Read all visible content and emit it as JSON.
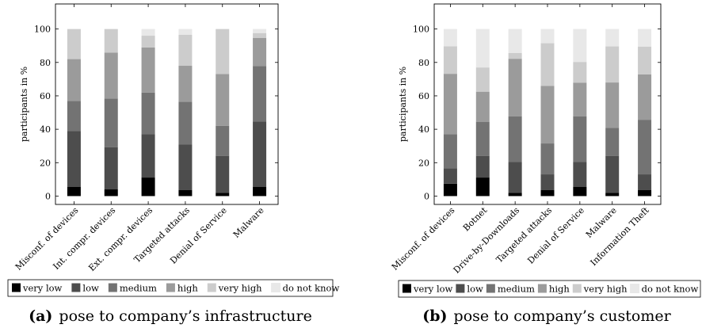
{
  "levels": [
    {
      "name": "very low",
      "color": "#000000"
    },
    {
      "name": "low",
      "color": "#4d4d4d"
    },
    {
      "name": "medium",
      "color": "#737373"
    },
    {
      "name": "high",
      "color": "#9b9b9b"
    },
    {
      "name": "very high",
      "color": "#cccccc"
    },
    {
      "name": "do not know",
      "color": "#e8e8e8"
    }
  ],
  "chart_data": [
    {
      "type": "bar",
      "stacked": true,
      "caption_label": "(a)",
      "caption_text": "pose to company’s infrastructure",
      "ylabel": "participants in %",
      "ylim": [
        -5,
        115
      ],
      "yticks": [
        0,
        20,
        40,
        60,
        80,
        100
      ],
      "categories": [
        "Misconf. of devices",
        "Int. compr. devices",
        "Ext. compr. devices",
        "Targeted attacks",
        "Denial of Service",
        "Malware"
      ],
      "series": [
        {
          "name": "very low",
          "values": [
            5.6,
            4.0,
            11.1,
            3.7,
            1.9,
            5.6
          ]
        },
        {
          "name": "low",
          "values": [
            33.3,
            25.3,
            25.9,
            27.1,
            22.2,
            39.0
          ]
        },
        {
          "name": "medium",
          "values": [
            18.1,
            29.1,
            25.0,
            25.7,
            18.0,
            33.3
          ]
        },
        {
          "name": "high",
          "values": [
            25.0,
            27.5,
            27.0,
            21.5,
            31.0,
            16.7
          ]
        },
        {
          "name": "very high",
          "values": [
            18.0,
            14.1,
            7.0,
            18.5,
            26.9,
            3.0
          ]
        },
        {
          "name": "do not know",
          "values": [
            0.0,
            0.0,
            4.0,
            3.5,
            0.0,
            2.4
          ]
        }
      ],
      "legend_position": "bottom"
    },
    {
      "type": "bar",
      "stacked": true,
      "caption_label": "(b)",
      "caption_text": "pose to company’s customer",
      "ylabel": "participants in %",
      "ylim": [
        -5,
        115
      ],
      "yticks": [
        0,
        20,
        40,
        60,
        80,
        100
      ],
      "categories": [
        "Misconf. of devices",
        "Botnet",
        "Drive-by-Downloads",
        "Targeted attacks",
        "Denial of Service",
        "Malware",
        "Information Theft"
      ],
      "series": [
        {
          "name": "very low",
          "values": [
            7.4,
            11.1,
            1.9,
            3.7,
            5.6,
            1.9,
            3.7
          ]
        },
        {
          "name": "low",
          "values": [
            9.3,
            13.0,
            18.5,
            9.3,
            14.8,
            22.2,
            9.3
          ]
        },
        {
          "name": "medium",
          "values": [
            20.4,
            20.4,
            27.4,
            18.5,
            27.4,
            16.7,
            32.7
          ]
        },
        {
          "name": "high",
          "values": [
            36.1,
            18.0,
            34.4,
            34.5,
            20.0,
            27.2,
            27.1
          ]
        },
        {
          "name": "very high",
          "values": [
            16.5,
            14.5,
            3.4,
            25.5,
            12.5,
            21.6,
            16.7
          ]
        },
        {
          "name": "do not know",
          "values": [
            10.3,
            23.0,
            14.4,
            8.5,
            19.7,
            10.4,
            10.5
          ]
        }
      ],
      "legend_position": "bottom"
    }
  ]
}
